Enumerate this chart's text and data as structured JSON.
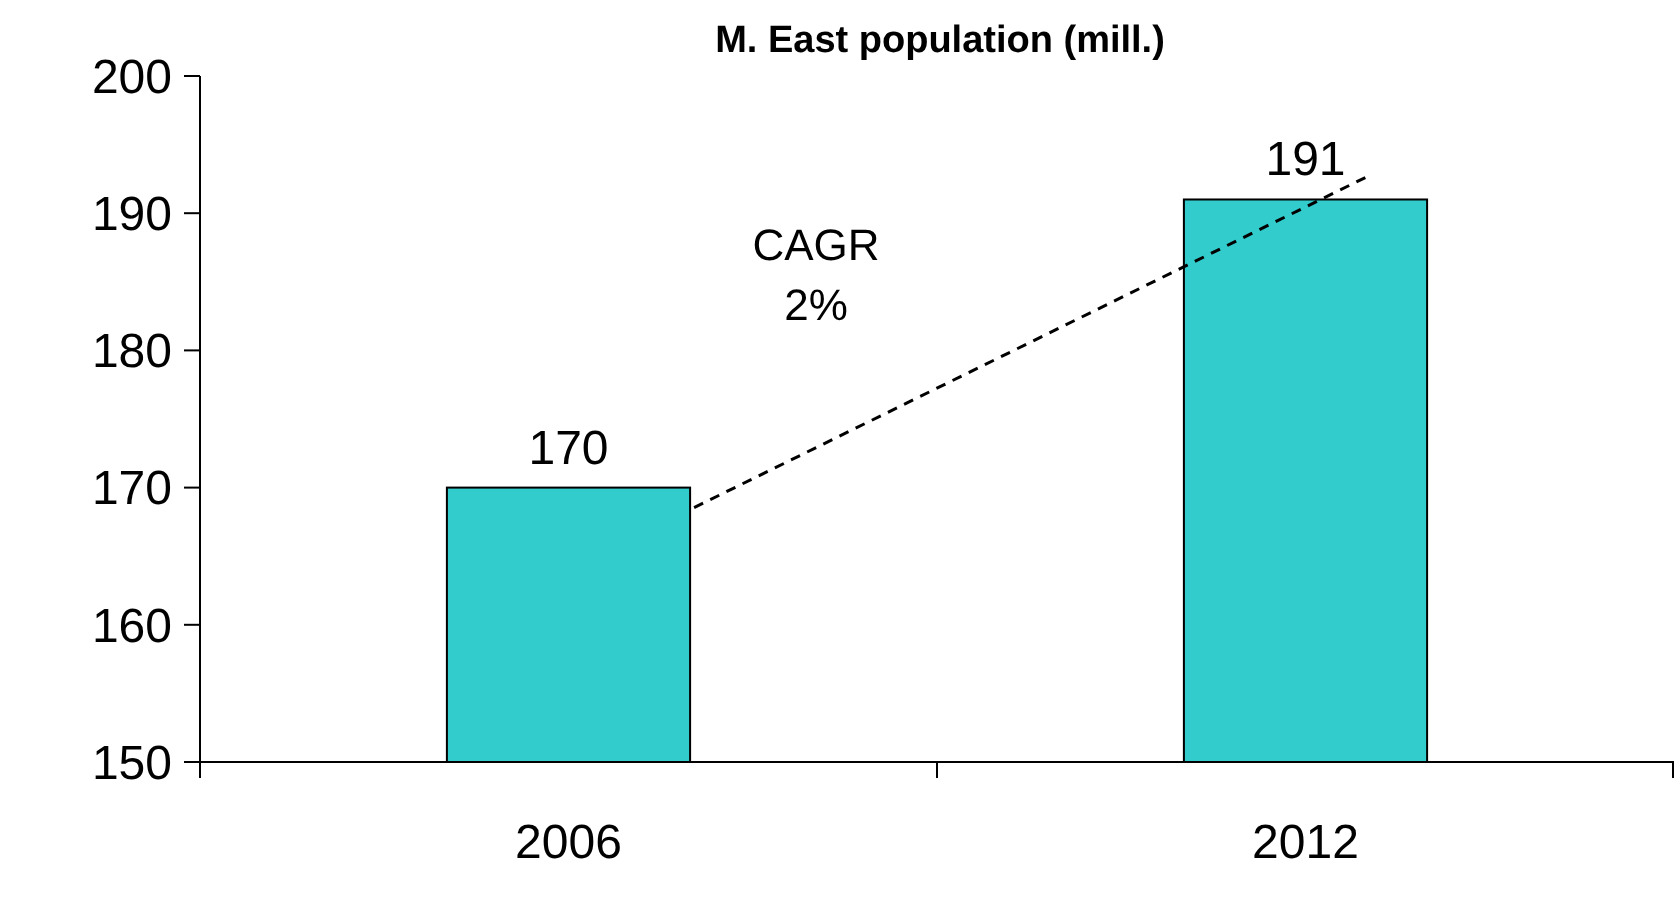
{
  "chart_data": {
    "type": "bar",
    "title": "M. East population (mill.)",
    "categories": [
      "2006",
      "2012"
    ],
    "values": [
      170,
      191
    ],
    "color": "#33cccc",
    "data_labels": true,
    "ylim": [
      150,
      200
    ],
    "yticks": [
      150,
      160,
      170,
      180,
      190,
      200
    ],
    "grid": false,
    "annotations": [
      "CAGR 2%"
    ]
  }
}
